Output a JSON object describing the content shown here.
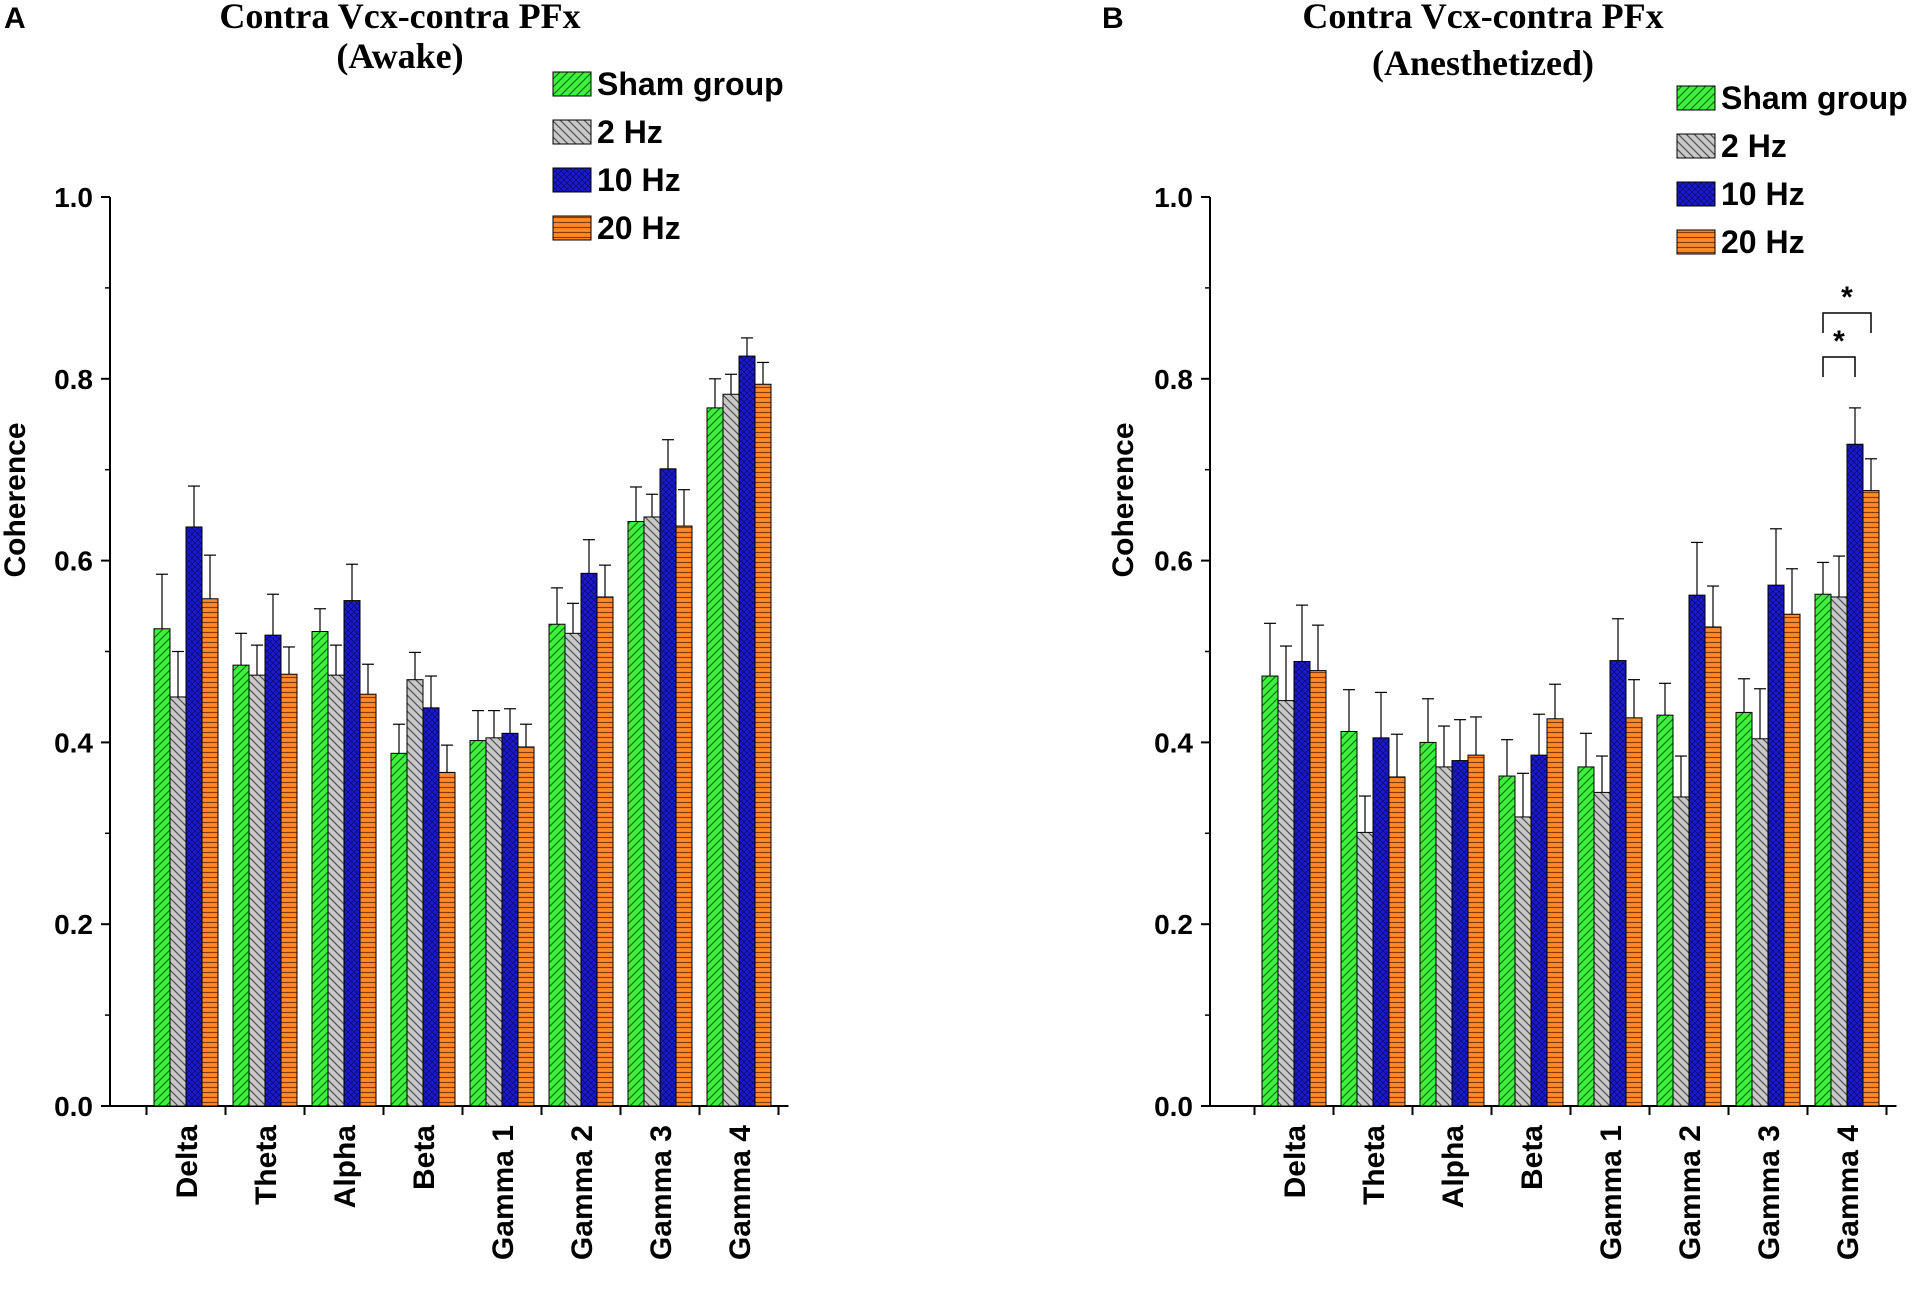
{
  "colors": {
    "sham": "#3df23d",
    "hz2": "#c8c8c8",
    "hz10": "#1a1ac8",
    "hz20": "#ff8a2a",
    "axis": "#000000"
  },
  "chart_data": [
    {
      "type": "bar",
      "panel": "A",
      "title": "Contra Vcx-contra PFx",
      "subtitle": "(Awake)",
      "xlabel": "",
      "ylabel": "Coherence",
      "ylim": [
        0.0,
        1.0
      ],
      "yticks": [
        "0.0",
        "0.2",
        "0.4",
        "0.6",
        "0.8",
        "1.0"
      ],
      "categories": [
        "Delta",
        "Theta",
        "Alpha",
        "Beta",
        "Gamma 1",
        "Gamma 2",
        "Gamma 3",
        "Gamma 4"
      ],
      "legend": [
        "Sham group",
        "2 Hz",
        "10 Hz",
        "20 Hz"
      ],
      "legend_position": "top-right",
      "series": [
        {
          "name": "Sham group",
          "values": [
            0.525,
            0.485,
            0.522,
            0.388,
            0.402,
            0.53,
            0.643,
            0.768
          ],
          "errors": [
            0.06,
            0.035,
            0.025,
            0.032,
            0.033,
            0.04,
            0.038,
            0.032
          ]
        },
        {
          "name": "2 Hz",
          "values": [
            0.45,
            0.474,
            0.474,
            0.469,
            0.405,
            0.52,
            0.648,
            0.783
          ],
          "errors": [
            0.05,
            0.033,
            0.033,
            0.03,
            0.03,
            0.033,
            0.025,
            0.022
          ]
        },
        {
          "name": "10 Hz",
          "values": [
            0.637,
            0.518,
            0.556,
            0.438,
            0.41,
            0.586,
            0.701,
            0.825
          ],
          "errors": [
            0.045,
            0.045,
            0.04,
            0.035,
            0.027,
            0.037,
            0.032,
            0.02
          ]
        },
        {
          "name": "20 Hz",
          "values": [
            0.558,
            0.475,
            0.453,
            0.367,
            0.395,
            0.56,
            0.638,
            0.794
          ],
          "errors": [
            0.048,
            0.03,
            0.033,
            0.03,
            0.025,
            0.035,
            0.04,
            0.024
          ]
        }
      ],
      "significance": []
    },
    {
      "type": "bar",
      "panel": "B",
      "title": "Contra Vcx-contra PFx",
      "subtitle": "(Anesthetized)",
      "xlabel": "",
      "ylabel": "Coherence",
      "ylim": [
        0.0,
        1.0
      ],
      "yticks": [
        "0.0",
        "0.2",
        "0.4",
        "0.6",
        "0.8",
        "1.0"
      ],
      "categories": [
        "Delta",
        "Theta",
        "Alpha",
        "Beta",
        "Gamma 1",
        "Gamma 2",
        "Gamma 3",
        "Gamma 4"
      ],
      "legend": [
        "Sham group",
        "2 Hz",
        "10 Hz",
        "20 Hz"
      ],
      "legend_position": "top-right",
      "series": [
        {
          "name": "Sham group",
          "values": [
            0.473,
            0.412,
            0.4,
            0.363,
            0.373,
            0.43,
            0.433,
            0.563
          ],
          "errors": [
            0.058,
            0.046,
            0.048,
            0.04,
            0.037,
            0.035,
            0.037,
            0.035
          ]
        },
        {
          "name": "2 Hz",
          "values": [
            0.446,
            0.301,
            0.373,
            0.318,
            0.345,
            0.34,
            0.404,
            0.56
          ],
          "errors": [
            0.06,
            0.04,
            0.045,
            0.048,
            0.04,
            0.045,
            0.055,
            0.045
          ]
        },
        {
          "name": "10 Hz",
          "values": [
            0.489,
            0.405,
            0.38,
            0.386,
            0.49,
            0.562,
            0.573,
            0.728
          ],
          "errors": [
            0.062,
            0.05,
            0.045,
            0.045,
            0.046,
            0.058,
            0.062,
            0.04
          ]
        },
        {
          "name": "20 Hz",
          "values": [
            0.479,
            0.362,
            0.386,
            0.426,
            0.427,
            0.527,
            0.541,
            0.677
          ],
          "errors": [
            0.05,
            0.047,
            0.042,
            0.038,
            0.042,
            0.045,
            0.05,
            0.035
          ]
        }
      ],
      "significance": [
        {
          "category": "Gamma 4",
          "from": "Sham group",
          "to": "10 Hz",
          "label": "*"
        },
        {
          "category": "Gamma 4",
          "from": "Sham group",
          "to": "20 Hz",
          "label": "*"
        }
      ]
    }
  ]
}
